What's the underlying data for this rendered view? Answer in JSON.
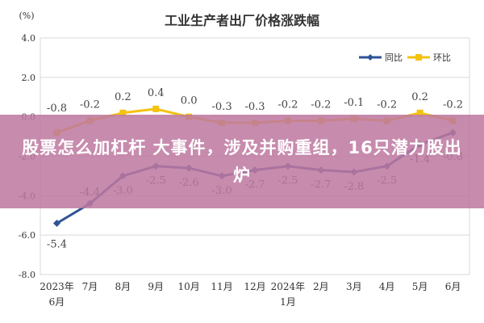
{
  "chart_data": {
    "type": "line",
    "title": "工业生产者出厂价格涨跌幅",
    "unit_label": "(%)",
    "categories": [
      "2023年6月",
      "7月",
      "8月",
      "9月",
      "10月",
      "11月",
      "12月",
      "2024年1月",
      "2月",
      "3月",
      "4月",
      "5月",
      "6月"
    ],
    "category_lines": [
      [
        "2023年",
        "6月"
      ],
      [
        "7月"
      ],
      [
        "8月"
      ],
      [
        "9月"
      ],
      [
        "10月"
      ],
      [
        "11月"
      ],
      [
        "12月"
      ],
      [
        "2024年",
        "1月"
      ],
      [
        "2月"
      ],
      [
        "3月"
      ],
      [
        "4月"
      ],
      [
        "5月"
      ],
      [
        "6月"
      ]
    ],
    "ylim": [
      -8.0,
      4.0
    ],
    "yticks": [
      "4.0",
      "2.0",
      "0.0",
      "-2.0",
      "-4.0",
      "-6.0",
      "-8.0"
    ],
    "grid": true,
    "legend_position": "top-right",
    "series": [
      {
        "name": "同比",
        "color": "#2e5496",
        "values": [
          -5.4,
          -4.4,
          -3.0,
          -2.5,
          -2.6,
          -3.0,
          -2.7,
          -2.5,
          -2.7,
          -2.8,
          -2.5,
          -1.4,
          -0.8
        ],
        "labels": [
          "-5.4",
          "-4.4",
          "-3.0",
          "-2.5",
          "-2.6",
          "-3.0",
          "-2.7",
          "-2.5",
          "-2.7",
          "-2.8",
          "-2.5",
          "-1.4",
          "-0.8"
        ]
      },
      {
        "name": "环比",
        "color": "#f5c20f",
        "values": [
          -0.8,
          -0.2,
          0.2,
          0.4,
          0.0,
          -0.3,
          -0.3,
          -0.2,
          -0.2,
          -0.1,
          -0.2,
          0.2,
          -0.2
        ],
        "labels": [
          "-0.8",
          "-0.2",
          "0.2",
          "0.4",
          "0.0",
          "-0.3",
          "-0.3",
          "-0.2",
          "-0.2",
          "-0.1",
          "-0.2",
          "0.2",
          "-0.2"
        ]
      }
    ]
  },
  "banner": {
    "text": "股票怎么加杠杆 大事件，涉及并购重组，16只潜力股出炉",
    "color": "#be78a0"
  }
}
